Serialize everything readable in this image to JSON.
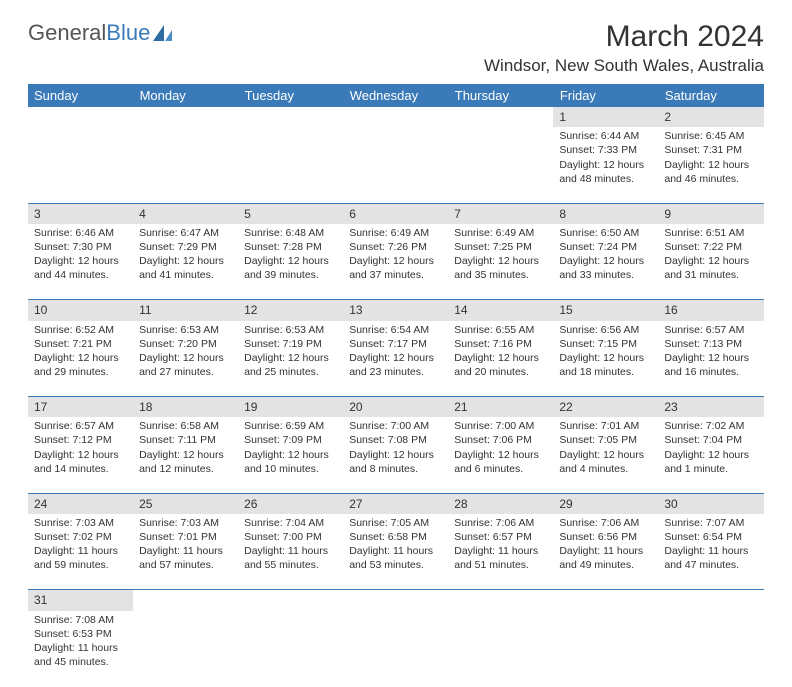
{
  "logo": {
    "part1": "General",
    "part2": "Blue"
  },
  "title": "March 2024",
  "location": "Windsor, New South Wales, Australia",
  "colors": {
    "header_bg": "#3a7ab8",
    "daynum_bg": "#e3e3e3",
    "text": "#333333",
    "border": "#3a7ab8"
  },
  "days_of_week": [
    "Sunday",
    "Monday",
    "Tuesday",
    "Wednesday",
    "Thursday",
    "Friday",
    "Saturday"
  ],
  "weeks": [
    [
      null,
      null,
      null,
      null,
      null,
      {
        "n": "1",
        "sr": "6:44 AM",
        "ss": "7:33 PM",
        "dl": "12 hours and 48 minutes."
      },
      {
        "n": "2",
        "sr": "6:45 AM",
        "ss": "7:31 PM",
        "dl": "12 hours and 46 minutes."
      }
    ],
    [
      {
        "n": "3",
        "sr": "6:46 AM",
        "ss": "7:30 PM",
        "dl": "12 hours and 44 minutes."
      },
      {
        "n": "4",
        "sr": "6:47 AM",
        "ss": "7:29 PM",
        "dl": "12 hours and 41 minutes."
      },
      {
        "n": "5",
        "sr": "6:48 AM",
        "ss": "7:28 PM",
        "dl": "12 hours and 39 minutes."
      },
      {
        "n": "6",
        "sr": "6:49 AM",
        "ss": "7:26 PM",
        "dl": "12 hours and 37 minutes."
      },
      {
        "n": "7",
        "sr": "6:49 AM",
        "ss": "7:25 PM",
        "dl": "12 hours and 35 minutes."
      },
      {
        "n": "8",
        "sr": "6:50 AM",
        "ss": "7:24 PM",
        "dl": "12 hours and 33 minutes."
      },
      {
        "n": "9",
        "sr": "6:51 AM",
        "ss": "7:22 PM",
        "dl": "12 hours and 31 minutes."
      }
    ],
    [
      {
        "n": "10",
        "sr": "6:52 AM",
        "ss": "7:21 PM",
        "dl": "12 hours and 29 minutes."
      },
      {
        "n": "11",
        "sr": "6:53 AM",
        "ss": "7:20 PM",
        "dl": "12 hours and 27 minutes."
      },
      {
        "n": "12",
        "sr": "6:53 AM",
        "ss": "7:19 PM",
        "dl": "12 hours and 25 minutes."
      },
      {
        "n": "13",
        "sr": "6:54 AM",
        "ss": "7:17 PM",
        "dl": "12 hours and 23 minutes."
      },
      {
        "n": "14",
        "sr": "6:55 AM",
        "ss": "7:16 PM",
        "dl": "12 hours and 20 minutes."
      },
      {
        "n": "15",
        "sr": "6:56 AM",
        "ss": "7:15 PM",
        "dl": "12 hours and 18 minutes."
      },
      {
        "n": "16",
        "sr": "6:57 AM",
        "ss": "7:13 PM",
        "dl": "12 hours and 16 minutes."
      }
    ],
    [
      {
        "n": "17",
        "sr": "6:57 AM",
        "ss": "7:12 PM",
        "dl": "12 hours and 14 minutes."
      },
      {
        "n": "18",
        "sr": "6:58 AM",
        "ss": "7:11 PM",
        "dl": "12 hours and 12 minutes."
      },
      {
        "n": "19",
        "sr": "6:59 AM",
        "ss": "7:09 PM",
        "dl": "12 hours and 10 minutes."
      },
      {
        "n": "20",
        "sr": "7:00 AM",
        "ss": "7:08 PM",
        "dl": "12 hours and 8 minutes."
      },
      {
        "n": "21",
        "sr": "7:00 AM",
        "ss": "7:06 PM",
        "dl": "12 hours and 6 minutes."
      },
      {
        "n": "22",
        "sr": "7:01 AM",
        "ss": "7:05 PM",
        "dl": "12 hours and 4 minutes."
      },
      {
        "n": "23",
        "sr": "7:02 AM",
        "ss": "7:04 PM",
        "dl": "12 hours and 1 minute."
      }
    ],
    [
      {
        "n": "24",
        "sr": "7:03 AM",
        "ss": "7:02 PM",
        "dl": "11 hours and 59 minutes."
      },
      {
        "n": "25",
        "sr": "7:03 AM",
        "ss": "7:01 PM",
        "dl": "11 hours and 57 minutes."
      },
      {
        "n": "26",
        "sr": "7:04 AM",
        "ss": "7:00 PM",
        "dl": "11 hours and 55 minutes."
      },
      {
        "n": "27",
        "sr": "7:05 AM",
        "ss": "6:58 PM",
        "dl": "11 hours and 53 minutes."
      },
      {
        "n": "28",
        "sr": "7:06 AM",
        "ss": "6:57 PM",
        "dl": "11 hours and 51 minutes."
      },
      {
        "n": "29",
        "sr": "7:06 AM",
        "ss": "6:56 PM",
        "dl": "11 hours and 49 minutes."
      },
      {
        "n": "30",
        "sr": "7:07 AM",
        "ss": "6:54 PM",
        "dl": "11 hours and 47 minutes."
      }
    ],
    [
      {
        "n": "31",
        "sr": "7:08 AM",
        "ss": "6:53 PM",
        "dl": "11 hours and 45 minutes."
      },
      null,
      null,
      null,
      null,
      null,
      null
    ]
  ],
  "labels": {
    "sunrise": "Sunrise:",
    "sunset": "Sunset:",
    "daylight": "Daylight:"
  }
}
